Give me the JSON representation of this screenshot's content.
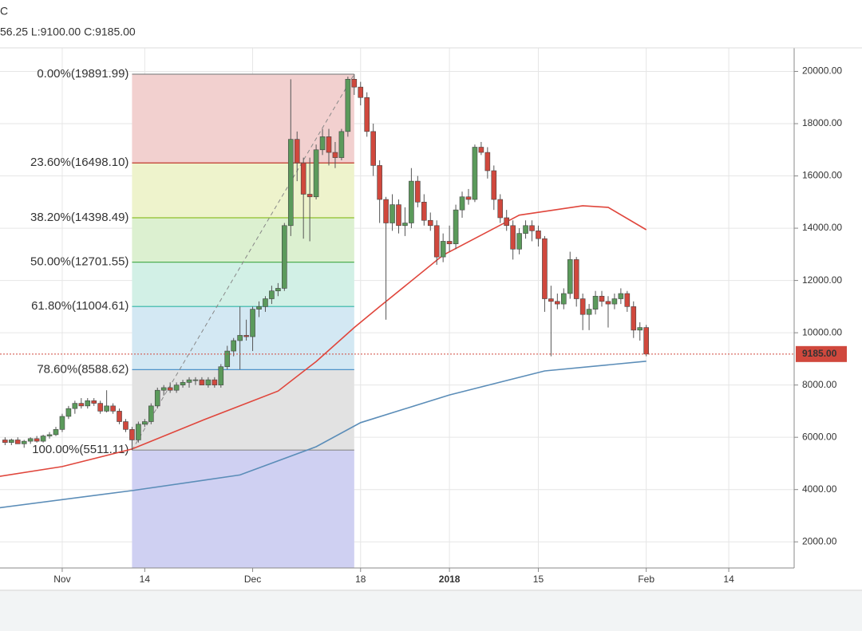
{
  "chart_data": {
    "type": "candlestick",
    "title": "C",
    "subtitle": "56.25 L:9100.00 C:9185.00",
    "xlim": [
      -9.8,
      115.3
    ],
    "xticks": [
      {
        "value": 0,
        "label": "Nov"
      },
      {
        "value": 13,
        "label": "14"
      },
      {
        "value": 30,
        "label": "Dec"
      },
      {
        "value": 47,
        "label": "18"
      },
      {
        "value": 61,
        "label": "2018"
      },
      {
        "value": 75,
        "label": "15"
      },
      {
        "value": 92,
        "label": "Feb"
      },
      {
        "value": 105,
        "label": "14"
      }
    ],
    "ylim": [
      1000,
      20900
    ],
    "yticks": [
      {
        "value": 2000,
        "label": "2000.00"
      },
      {
        "value": 4000,
        "label": "4000.00"
      },
      {
        "value": 6000,
        "label": "6000.00"
      },
      {
        "value": 8000,
        "label": "8000.00"
      },
      {
        "value": 10000,
        "label": "10000.00"
      },
      {
        "value": 12000,
        "label": "12000.00"
      },
      {
        "value": 14000,
        "label": "14000.00"
      },
      {
        "value": 16000,
        "label": "16000.00"
      },
      {
        "value": 18000,
        "label": "18000.00"
      },
      {
        "value": 20000,
        "label": "20000.00"
      }
    ],
    "grid": true,
    "up_color": "#5b9a5b",
    "down_color": "#d0483d",
    "x": [
      -9,
      -8,
      -7,
      -6,
      -5,
      -4,
      -3,
      -2,
      -1,
      0,
      1,
      2,
      3,
      4,
      5,
      6,
      7,
      8,
      9,
      10,
      11,
      12,
      13,
      14,
      15,
      16,
      17,
      18,
      19,
      20,
      21,
      22,
      23,
      24,
      25,
      26,
      27,
      28,
      29,
      30,
      31,
      32,
      33,
      34,
      35,
      36,
      37,
      38,
      39,
      40,
      41,
      42,
      43,
      44,
      45,
      46,
      47,
      48,
      49,
      50,
      51,
      52,
      53,
      54,
      55,
      56,
      57,
      58,
      59,
      60,
      61,
      62,
      63,
      64,
      65,
      66,
      67,
      68,
      69,
      70,
      71,
      72,
      73,
      74,
      75,
      76,
      77,
      78,
      79,
      80,
      81,
      82,
      83,
      84,
      85,
      86,
      87,
      88,
      89,
      90,
      91,
      92
    ],
    "open": [
      5900,
      5800,
      5900,
      5750,
      5850,
      5950,
      5850,
      6050,
      6100,
      6300,
      6800,
      7100,
      7300,
      7200,
      7400,
      7300,
      7000,
      7200,
      7000,
      6600,
      6300,
      5900,
      6500,
      6600,
      7200,
      7800,
      7900,
      7800,
      8000,
      8100,
      8200,
      8200,
      8000,
      8200,
      8000,
      8700,
      9300,
      9700,
      9900,
      9850,
      10900,
      11000,
      11300,
      11600,
      11700,
      14100,
      17400,
      16500,
      15300,
      15200,
      17000,
      17500,
      16900,
      16700,
      17700,
      19700,
      19400,
      19000,
      17700,
      16400,
      15100,
      14200,
      14900,
      14100,
      14200,
      15800,
      15000,
      14300,
      14100,
      12900,
      13500,
      13400,
      14700,
      15200,
      15100,
      17100,
      16900,
      16200,
      15100,
      14400,
      14100,
      13200,
      13800,
      14100,
      13900,
      13600,
      11300,
      11200,
      11100,
      11500,
      12800,
      11300,
      10700,
      10900,
      11400,
      11200,
      11100,
      11300,
      11500,
      11000,
      10100,
      10200
    ],
    "high": [
      6000,
      5950,
      6000,
      5900,
      6000,
      6050,
      6100,
      6200,
      6400,
      6900,
      7200,
      7400,
      7500,
      7500,
      7500,
      7400,
      7800,
      7300,
      7100,
      6700,
      6400,
      6600,
      6700,
      7300,
      7900,
      8000,
      8100,
      8100,
      8200,
      8300,
      8300,
      8300,
      8300,
      8300,
      8800,
      9500,
      9800,
      11000,
      10500,
      11000,
      11200,
      11400,
      11800,
      11900,
      14200,
      19700,
      17700,
      16700,
      16700,
      17200,
      17800,
      17800,
      17300,
      17800,
      19800,
      19891.99,
      19600,
      19200,
      18000,
      16600,
      15200,
      15300,
      15100,
      14800,
      16300,
      16000,
      15300,
      14600,
      14300,
      13800,
      14100,
      14900,
      15400,
      15500,
      17200,
      17300,
      17100,
      16400,
      15300,
      14700,
      14300,
      14000,
      14300,
      14300,
      14100,
      13700,
      11800,
      11500,
      11700,
      13100,
      12900,
      11500,
      11100,
      11600,
      11600,
      11400,
      11500,
      11700,
      11600,
      11200,
      10400,
      10300
    ],
    "low": [
      5700,
      5700,
      5750,
      5600,
      5750,
      5800,
      5800,
      5950,
      6050,
      6200,
      6700,
      6900,
      7100,
      7100,
      7200,
      6900,
      6950,
      6900,
      6500,
      6200,
      5511.11,
      5800,
      6400,
      6500,
      7100,
      7600,
      7700,
      7700,
      7900,
      7900,
      8000,
      8000,
      7900,
      7900,
      7900,
      8600,
      9100,
      8600,
      9700,
      9300,
      10600,
      10800,
      11100,
      11400,
      11600,
      13700,
      15800,
      13600,
      13500,
      15100,
      16800,
      16400,
      16300,
      16600,
      17500,
      19100,
      18700,
      17500,
      16000,
      14200,
      10500,
      13900,
      13800,
      13700,
      14000,
      14800,
      14100,
      13900,
      12600,
      12700,
      13100,
      13200,
      14400,
      14900,
      15000,
      16800,
      15900,
      14700,
      14200,
      13900,
      12800,
      13000,
      13600,
      13500,
      13300,
      10800,
      9100,
      10900,
      10900,
      11300,
      11000,
      10100,
      10100,
      10700,
      11000,
      10200,
      10900,
      11100,
      10800,
      9800,
      9700,
      9100
    ],
    "close": [
      5800,
      5900,
      5750,
      5850,
      5950,
      5850,
      6050,
      6100,
      6300,
      6800,
      7100,
      7300,
      7200,
      7400,
      7300,
      7000,
      7200,
      7000,
      6600,
      6300,
      5900,
      6500,
      6600,
      7200,
      7800,
      7900,
      7800,
      8000,
      8100,
      8200,
      8200,
      8000,
      8200,
      8000,
      8700,
      9300,
      9700,
      9900,
      9850,
      10900,
      11000,
      11300,
      11600,
      11700,
      14100,
      17400,
      16500,
      15300,
      15200,
      17000,
      17500,
      16900,
      16700,
      17700,
      19700,
      19400,
      19000,
      17700,
      16400,
      15100,
      14200,
      14900,
      14100,
      14200,
      15800,
      15000,
      14300,
      14100,
      12900,
      13500,
      13400,
      14700,
      15200,
      15100,
      17100,
      16900,
      16200,
      15100,
      14400,
      14100,
      13200,
      13800,
      14100,
      13900,
      13600,
      11300,
      11200,
      11100,
      11500,
      12800,
      11300,
      10700,
      10900,
      11400,
      11200,
      11100,
      11300,
      11500,
      11000,
      10100,
      10200,
      9185
    ],
    "series": [
      {
        "color": "#e0463c",
        "x": [
          -10,
          0,
          11,
          22,
          34,
          40,
          46,
          50,
          60,
          72,
          82,
          86,
          92
        ],
        "values": [
          4500,
          4880,
          5550,
          6640,
          7770,
          8900,
          10200,
          11000,
          12970,
          14500,
          14860,
          14800,
          13940
        ]
      },
      {
        "color": "#5b8db8",
        "x": [
          -10,
          11,
          28,
          40,
          47,
          61,
          76,
          92
        ],
        "values": [
          3300,
          3960,
          4560,
          5640,
          6560,
          7620,
          8540,
          8910
        ]
      }
    ],
    "fib": {
      "x": [
        11,
        46
      ],
      "levels": [
        {
          "label": "0.00%(19891.99)",
          "value": 19891.99,
          "color": "#8a8a8a",
          "fill": "#f2d0cf"
        },
        {
          "label": "23.60%(16498.10)",
          "value": 16498.1,
          "color": "#c0392b",
          "fill": "#eef3cc"
        },
        {
          "label": "38.20%(14398.49)",
          "value": 14398.49,
          "color": "#8fbf2a",
          "fill": "#dcf0d0"
        },
        {
          "label": "50.00%(12701.55)",
          "value": 12701.55,
          "color": "#4fae4f",
          "fill": "#d2f0e6"
        },
        {
          "label": "61.80%(11004.61)",
          "value": 11004.61,
          "color": "#2fb5a6",
          "fill": "#d3e8f3"
        },
        {
          "label": "78.60%(8588.62)",
          "value": 8588.62,
          "color": "#4f93c9",
          "fill": "#e2e2e2"
        },
        {
          "label": "100.00%(5511.11)",
          "value": 5511.11,
          "color": "#8a8a8a",
          "fill": "#cfd0f2"
        }
      ]
    },
    "last": {
      "value": 9185,
      "label": "9185.00",
      "color": "#d0483d"
    }
  }
}
